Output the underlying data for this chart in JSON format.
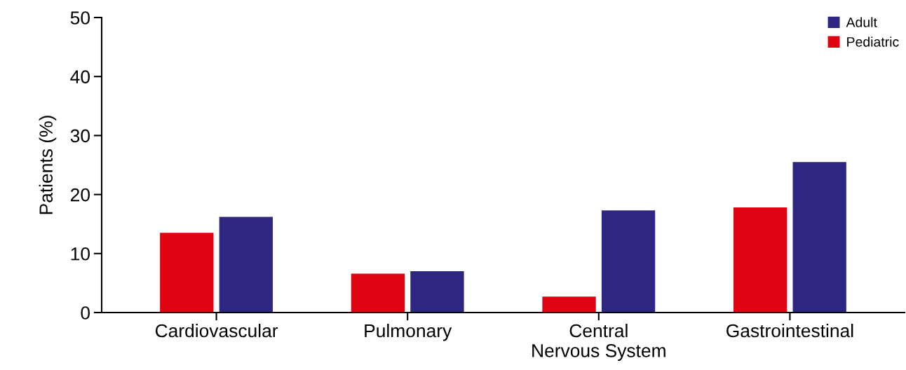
{
  "chart_data": {
    "type": "bar",
    "ylabel": "Patients (%)",
    "categories": [
      "Cardiovascular",
      "Pulmonary",
      "Central\nNervous System",
      "Gastrointestinal"
    ],
    "series": [
      {
        "name": "Pediatric",
        "color": "#e00412",
        "values": [
          13.5,
          6.6,
          2.7,
          17.8
        ]
      },
      {
        "name": "Adult",
        "color": "#2e2782",
        "values": [
          16.2,
          7.0,
          17.3,
          25.5
        ]
      }
    ],
    "ylim": [
      0,
      50
    ],
    "yticks": [
      0,
      10,
      20,
      30,
      40,
      50
    ],
    "legend": "top right",
    "grid": false
  }
}
